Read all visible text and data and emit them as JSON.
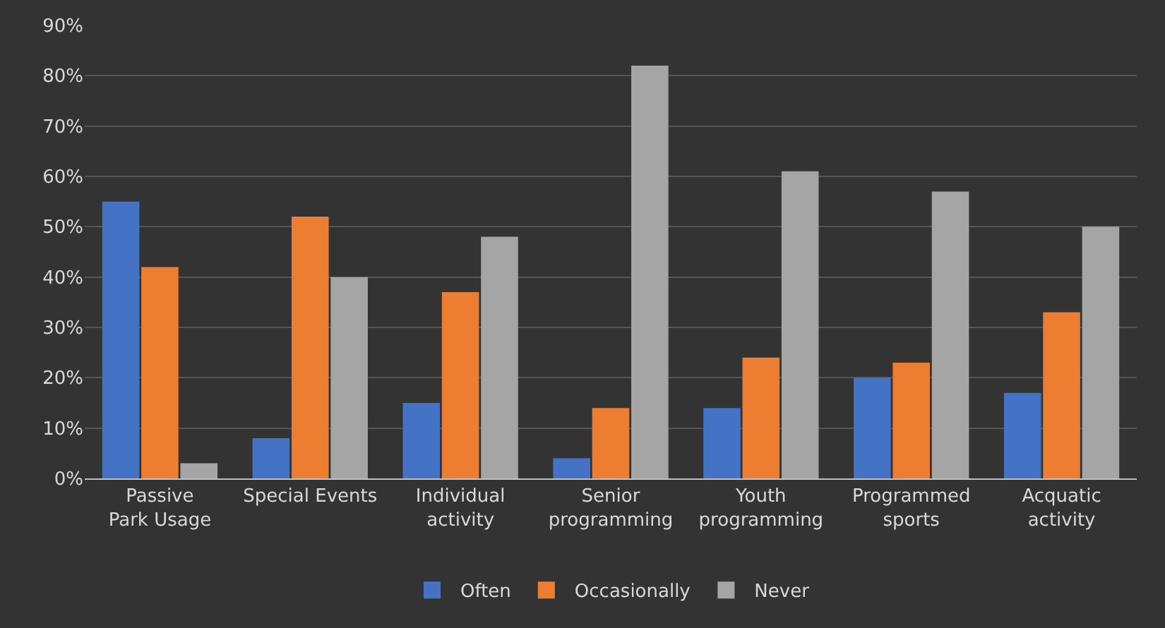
{
  "chart_data": {
    "type": "bar",
    "categories": [
      "Passive Park Usage",
      "Special Events",
      "Individual activity",
      "Senior programming",
      "Youth programming",
      "Programmed sports",
      "Acquatic activity"
    ],
    "series": [
      {
        "name": "Often",
        "color": "#4472c4",
        "values": [
          55,
          8,
          15,
          4,
          14,
          20,
          17
        ]
      },
      {
        "name": "Occasionally",
        "color": "#ed7d31",
        "values": [
          42,
          52,
          37,
          14,
          24,
          23,
          33
        ]
      },
      {
        "name": "Never",
        "color": "#a5a5a5",
        "values": [
          3,
          40,
          48,
          82,
          61,
          57,
          50
        ]
      }
    ],
    "ylim": [
      0,
      90
    ],
    "yticks": [
      {
        "value": 0,
        "label": "0%"
      },
      {
        "value": 10,
        "label": "10%"
      },
      {
        "value": 20,
        "label": "20%"
      },
      {
        "value": 30,
        "label": "30%"
      },
      {
        "value": 40,
        "label": "40%"
      },
      {
        "value": 50,
        "label": "50%"
      },
      {
        "value": 60,
        "label": "60%"
      },
      {
        "value": 70,
        "label": "70%"
      },
      {
        "value": 80,
        "label": "80%"
      },
      {
        "value": 90,
        "label": "90%"
      }
    ],
    "grid": "y",
    "legend": "bottom"
  }
}
